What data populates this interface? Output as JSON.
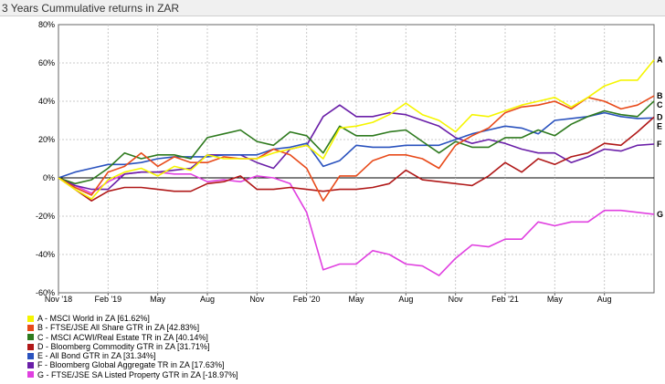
{
  "chart_data": {
    "type": "line",
    "title": "3 Years Cummulative returns in ZAR",
    "y_tick_labels": [
      "80%",
      "60%",
      "40%",
      "20%",
      "0%",
      "-20%",
      "-40%",
      "-60%"
    ],
    "x_tick_labels": [
      "Nov '18",
      "Feb '19",
      "May",
      "Aug",
      "Nov",
      "Feb '20",
      "May",
      "Aug",
      "Nov",
      "Feb '21",
      "May",
      "Aug"
    ],
    "ylim": [
      -60,
      80
    ],
    "x_months": [
      "2018-11",
      "2018-12",
      "2019-01",
      "2019-02",
      "2019-03",
      "2019-04",
      "2019-05",
      "2019-06",
      "2019-07",
      "2019-08",
      "2019-09",
      "2019-10",
      "2019-11",
      "2019-12",
      "2020-01",
      "2020-02",
      "2020-03",
      "2020-04",
      "2020-05",
      "2020-06",
      "2020-07",
      "2020-08",
      "2020-09",
      "2020-10",
      "2020-11",
      "2020-12",
      "2021-01",
      "2021-02",
      "2021-03",
      "2021-04",
      "2021-05",
      "2021-06",
      "2021-07",
      "2021-08",
      "2021-09",
      "2021-10",
      "2021-11"
    ],
    "grid": true,
    "legend_position": "bottom",
    "series": [
      {
        "letter": "A",
        "legend": "A - MSCI World in ZA [61.62%]",
        "color": "#f5f500",
        "values": [
          0,
          -6,
          -11,
          -1,
          3,
          5,
          1,
          6,
          4,
          12,
          10,
          10,
          10,
          13,
          15,
          17,
          10,
          26,
          27,
          29,
          33,
          39,
          33,
          30,
          24,
          33,
          32,
          35,
          38,
          40,
          42,
          37,
          42,
          48,
          51,
          51,
          61.6
        ]
      },
      {
        "letter": "B",
        "legend": "B - FTSE/JSE All Share GTR in ZA [42.83%]",
        "color": "#e84a1a",
        "values": [
          0,
          -5,
          -9,
          3,
          6,
          13,
          6,
          11,
          8,
          8,
          11,
          10,
          10,
          15,
          12,
          5,
          -12,
          1,
          1,
          9,
          12,
          12,
          10,
          5,
          17,
          22,
          26,
          34,
          37,
          38,
          40,
          36,
          42,
          40,
          36,
          38,
          42.8
        ]
      },
      {
        "letter": "C",
        "legend": "C - MSCI ACWI/Real Estate TR in ZA [40.14%]",
        "color": "#2e7a1e",
        "values": [
          0,
          -3,
          -1,
          5,
          13,
          10,
          12,
          12,
          10,
          21,
          23,
          25,
          19,
          17,
          24,
          22,
          13,
          27,
          22,
          22,
          24,
          25,
          19,
          13,
          19,
          16,
          16,
          21,
          21,
          25,
          22,
          28,
          32,
          35,
          33,
          32,
          40.1
        ]
      },
      {
        "letter": "D",
        "legend": "D - Bloomberg Commodity GTR in ZA [31.71%]",
        "color": "#b01818",
        "values": [
          0,
          -6,
          -12,
          -7,
          -5,
          -5,
          -6,
          -7,
          -7,
          -3,
          -2,
          1,
          -6,
          -6,
          -5,
          -6,
          -7,
          -6,
          -6,
          -5,
          -3,
          4,
          -1,
          -2,
          -3,
          -4,
          1,
          8,
          3,
          10,
          7,
          11,
          13,
          18,
          17,
          24,
          31.7
        ]
      },
      {
        "letter": "E",
        "legend": "E - All Bond GTR in ZA [31.34%]",
        "color": "#2a52be",
        "values": [
          0,
          3,
          5,
          7,
          7,
          8,
          10,
          11,
          11,
          11,
          12,
          12,
          12,
          15,
          16,
          18,
          6,
          9,
          17,
          16,
          16,
          17,
          17,
          17,
          20,
          23,
          25,
          27,
          26,
          23,
          30,
          31,
          32,
          34,
          32,
          31,
          31.3
        ]
      },
      {
        "letter": "F",
        "legend": "F - Bloomberg Global Aggregate TR in ZA [17.63%]",
        "color": "#6a1fa8",
        "values": [
          0,
          -4,
          -6,
          -6,
          2,
          3,
          3,
          4,
          5,
          12,
          12,
          12,
          8,
          5,
          15,
          17,
          32,
          38,
          32,
          32,
          34,
          33,
          30,
          27,
          21,
          18,
          20,
          18,
          15,
          13,
          13,
          8,
          11,
          15,
          14,
          17,
          17.6
        ]
      },
      {
        "letter": "G",
        "legend": "G - FTSE/JSE SA Listed Property GTR in ZA [-18.97%]",
        "color": "#e040e0",
        "values": [
          0,
          -4,
          -8,
          -2,
          2,
          3,
          3,
          2,
          2,
          -2,
          -1,
          -2,
          1,
          0,
          -3,
          -18,
          -48,
          -45,
          -45,
          -38,
          -40,
          -45,
          -46,
          -51,
          -42,
          -35,
          -36,
          -32,
          -32,
          -23,
          -25,
          -23,
          -23,
          -17,
          -17,
          -18,
          -19.0
        ]
      }
    ]
  }
}
